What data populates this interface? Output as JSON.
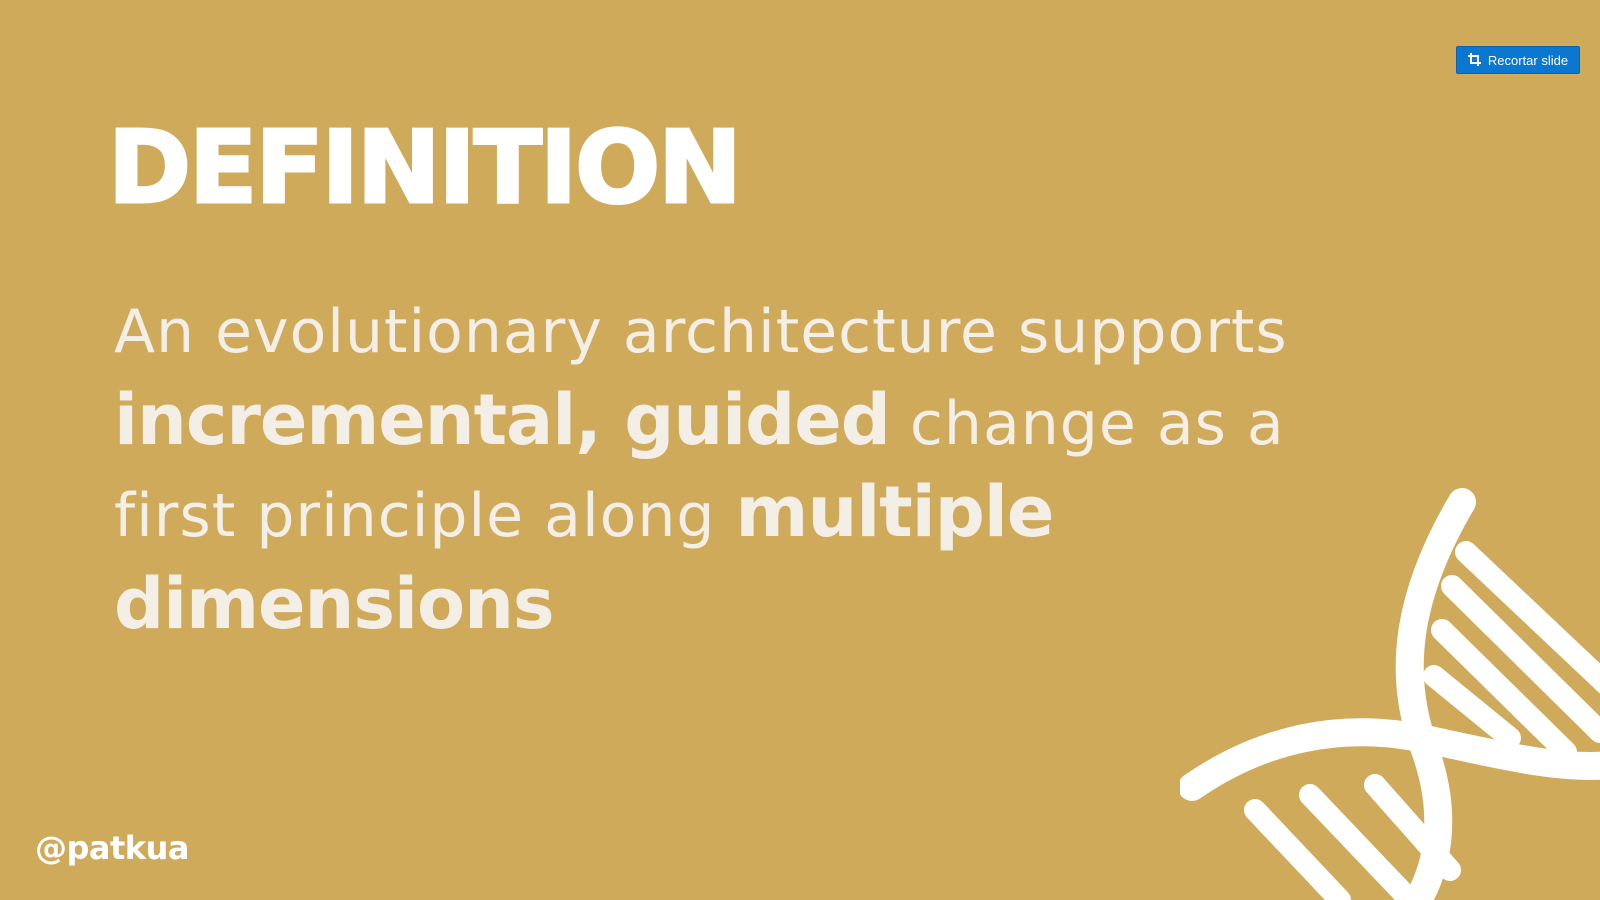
{
  "toolbar": {
    "crop_label": "Recortar slide",
    "crop_icon": "crop-icon",
    "button_color": "#0a78d0"
  },
  "slide": {
    "background": "#cfaa5a",
    "title": "DEFINITION",
    "body": {
      "part1": "An evolutionary architecture supports ",
      "em1": "incremental, guided",
      "part2": " change as a first principle along ",
      "em2": "multiple dimensions"
    },
    "handle": "@patkua",
    "decoration_icon": "dna-icon"
  }
}
